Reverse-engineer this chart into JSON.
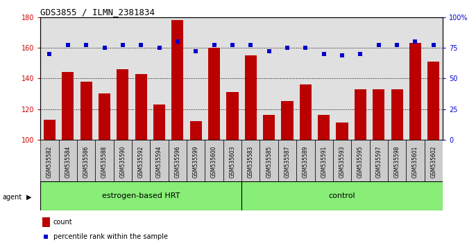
{
  "title": "GDS3855 / ILMN_2381834",
  "samples": [
    "GSM535582",
    "GSM535584",
    "GSM535586",
    "GSM535588",
    "GSM535590",
    "GSM535592",
    "GSM535594",
    "GSM535596",
    "GSM535599",
    "GSM535600",
    "GSM535603",
    "GSM535583",
    "GSM535585",
    "GSM535587",
    "GSM535589",
    "GSM535591",
    "GSM535593",
    "GSM535595",
    "GSM535597",
    "GSM535598",
    "GSM535601",
    "GSM535602"
  ],
  "counts": [
    113,
    144,
    138,
    130,
    146,
    143,
    123,
    178,
    112,
    160,
    131,
    155,
    116,
    125,
    136,
    116,
    111,
    133,
    133,
    133,
    163,
    151
  ],
  "percentiles": [
    70,
    77,
    77,
    75,
    77,
    77,
    75,
    80,
    72,
    77,
    77,
    77,
    72,
    75,
    75,
    70,
    69,
    70,
    77,
    77,
    80,
    77
  ],
  "group1_count": 11,
  "group2_count": 11,
  "group1_label": "estrogen-based HRT",
  "group2_label": "control",
  "agent_label": "agent",
  "ylim_left": [
    100,
    180
  ],
  "ylim_right": [
    0,
    100
  ],
  "yticks_left": [
    100,
    120,
    140,
    160,
    180
  ],
  "yticks_right": [
    0,
    25,
    50,
    75,
    100
  ],
  "bar_color": "#bb0000",
  "dot_color": "#0000cc",
  "tick_color_left": "#cc0000",
  "tick_color_right": "#0000cc",
  "legend_count_label": "count",
  "legend_pct_label": "percentile rank within the sample",
  "group_bg_color": "#88ee77",
  "sample_bg_color": "#cccccc"
}
